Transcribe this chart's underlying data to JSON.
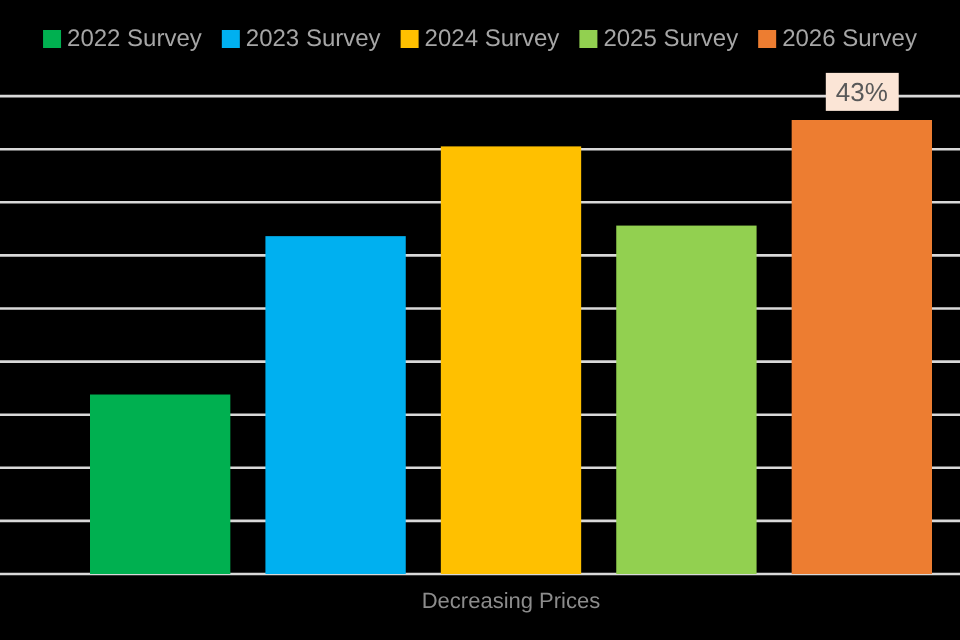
{
  "chart_data": {
    "type": "bar",
    "categories": [
      null
    ],
    "xlabel": "Decreasing Prices",
    "series": [
      {
        "name": "2022 Survey",
        "color": "#00b050",
        "values": [
          17
        ]
      },
      {
        "name": "2023 Survey",
        "color": "#00b0f0",
        "values": [
          32
        ]
      },
      {
        "name": "2024 Survey",
        "color": "#ffc000",
        "values": [
          40.5
        ]
      },
      {
        "name": "2025 Survey",
        "color": "#92d050",
        "values": [
          33
        ]
      },
      {
        "name": "2026 Survey",
        "color": "#ed7d31",
        "values": [
          43
        ],
        "value_labels": [
          "43%"
        ]
      }
    ],
    "grid": "y",
    "legend": "top"
  }
}
